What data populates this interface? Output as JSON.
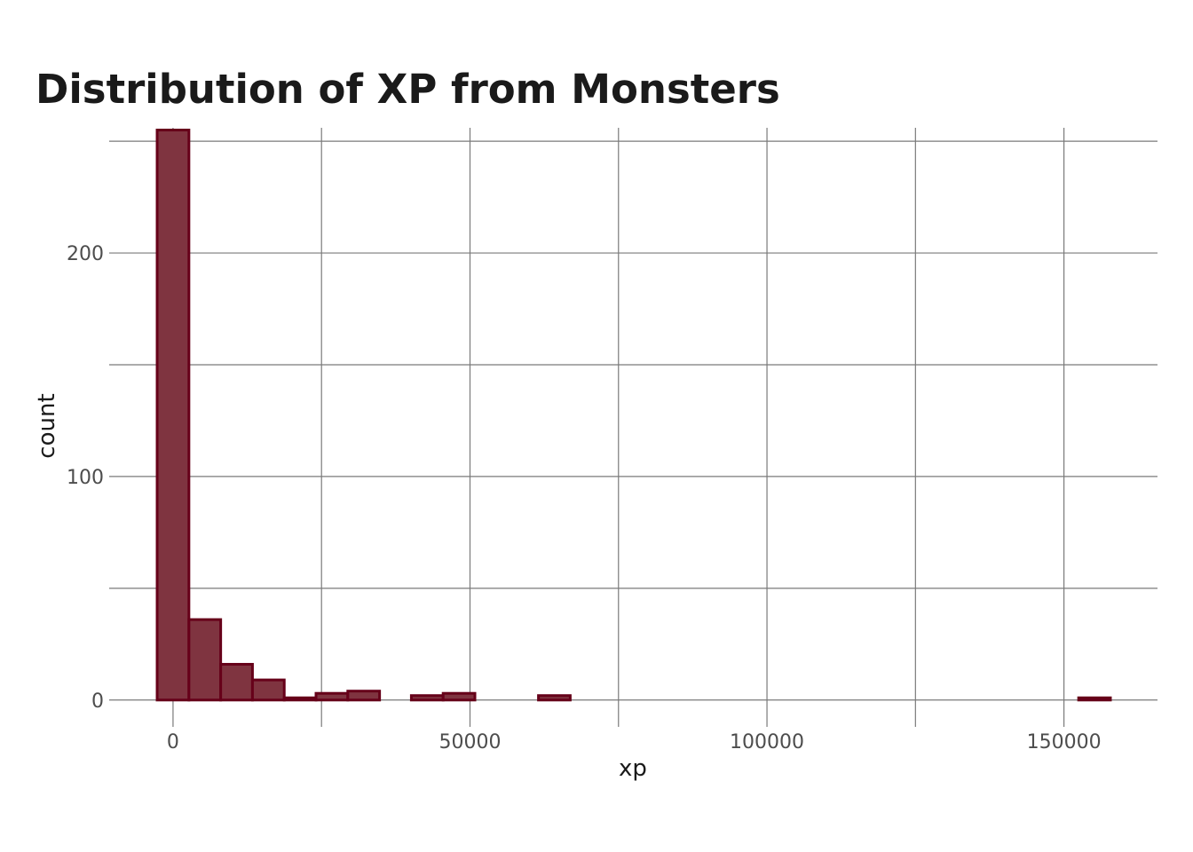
{
  "chart_data": {
    "type": "bar",
    "title": "Distribution of XP from Monsters",
    "xlabel": "xp",
    "ylabel": "count",
    "xlim": [
      -10750,
      165750
    ],
    "ylim": [
      -12,
      256
    ],
    "bin_width": 5350,
    "x_ticks": [
      0,
      50000,
      100000,
      150000
    ],
    "x_tick_labels": [
      "0",
      "50000",
      "100000",
      "150000"
    ],
    "x_minor_grid": [
      25000,
      75000,
      125000
    ],
    "y_ticks": [
      0,
      100,
      200
    ],
    "y_tick_labels": [
      "0",
      "100",
      "200"
    ],
    "y_minor_grid": [
      50,
      150,
      250
    ],
    "grid": true,
    "legend": "none",
    "bins": [
      {
        "center": 0,
        "count": 255
      },
      {
        "center": 5350,
        "count": 36
      },
      {
        "center": 10700,
        "count": 16
      },
      {
        "center": 16050,
        "count": 9
      },
      {
        "center": 21400,
        "count": 1
      },
      {
        "center": 26750,
        "count": 3
      },
      {
        "center": 32100,
        "count": 4
      },
      {
        "center": 37450,
        "count": 0
      },
      {
        "center": 42800,
        "count": 2
      },
      {
        "center": 48150,
        "count": 3
      },
      {
        "center": 53500,
        "count": 0
      },
      {
        "center": 58850,
        "count": 0
      },
      {
        "center": 64200,
        "count": 2
      },
      {
        "center": 69550,
        "count": 0
      },
      {
        "center": 74900,
        "count": 0
      },
      {
        "center": 80250,
        "count": 0
      },
      {
        "center": 85600,
        "count": 0
      },
      {
        "center": 90950,
        "count": 0
      },
      {
        "center": 96300,
        "count": 0
      },
      {
        "center": 101650,
        "count": 0
      },
      {
        "center": 107000,
        "count": 0
      },
      {
        "center": 112350,
        "count": 0
      },
      {
        "center": 117700,
        "count": 0
      },
      {
        "center": 123050,
        "count": 0
      },
      {
        "center": 128400,
        "count": 0
      },
      {
        "center": 133750,
        "count": 0
      },
      {
        "center": 139100,
        "count": 0
      },
      {
        "center": 144450,
        "count": 0
      },
      {
        "center": 149800,
        "count": 0
      },
      {
        "center": 155150,
        "count": 1
      }
    ],
    "colors": {
      "bar_fill": "#7f3440",
      "bar_stroke": "#660019"
    }
  }
}
